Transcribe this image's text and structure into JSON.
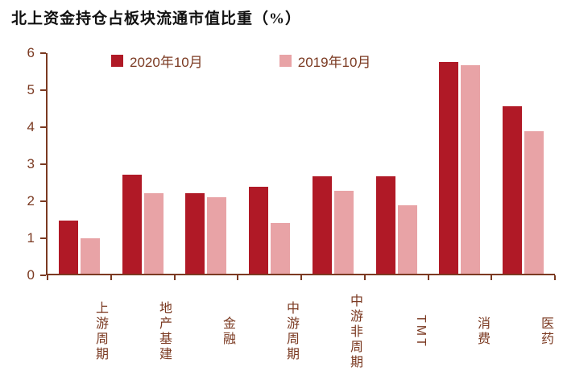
{
  "chart": {
    "title": "北上资金持仓占板块流通市值比重（%）"
  },
  "chart_data": {
    "type": "bar",
    "title": "北上资金持仓占板块流通市值比重（%）",
    "categories": [
      "上游周期",
      "地产基建",
      "金融",
      "中游周期",
      "中游非周期",
      "TMT",
      "消费",
      "医药"
    ],
    "series": [
      {
        "name": "2020年10月",
        "color": "#b01926",
        "values": [
          1.45,
          2.7,
          2.2,
          2.37,
          2.65,
          2.65,
          5.75,
          4.55
        ]
      },
      {
        "name": "2019年10月",
        "color": "#e8a3a6",
        "values": [
          0.97,
          2.2,
          2.08,
          1.37,
          2.25,
          1.87,
          5.68,
          3.88
        ]
      }
    ],
    "xlabel": "",
    "ylabel": "",
    "ylim": [
      0,
      6
    ],
    "ytick_step": 1,
    "grid": false,
    "legend_position": "top-inside"
  },
  "colors": {
    "axis": "#7b3a22",
    "title": "#111111",
    "series_2020": "#b01926",
    "series_2019": "#e8a3a6"
  }
}
